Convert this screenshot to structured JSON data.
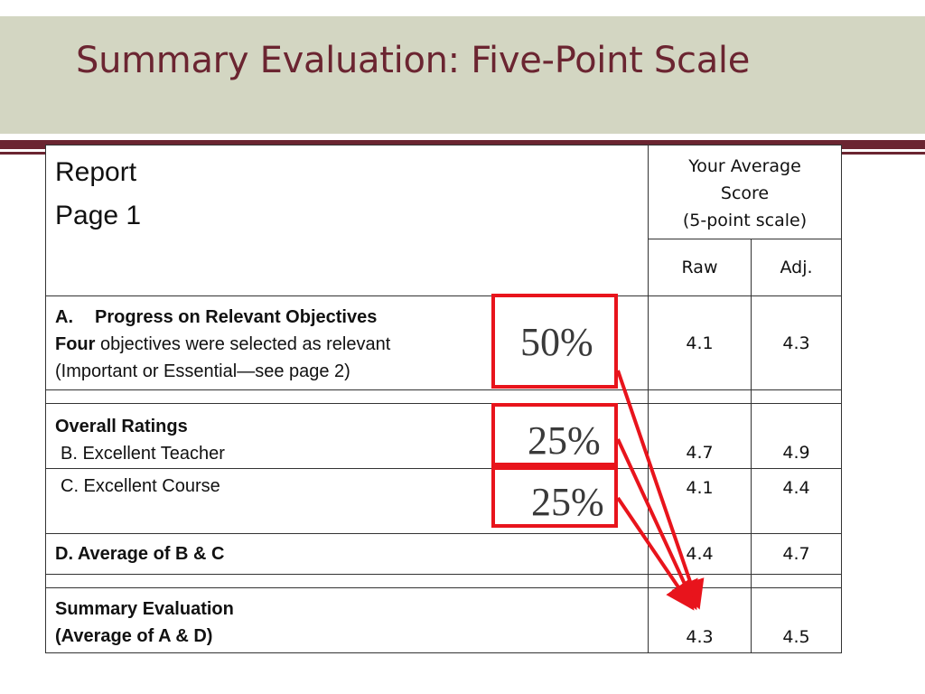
{
  "slide": {
    "title": "Summary Evaluation: Five-Point Scale"
  },
  "table": {
    "header": {
      "report_line1": "Report",
      "report_line2": "Page 1",
      "score_line1": "Your Average",
      "score_line2": "Score",
      "score_line3": "(5-point scale)",
      "raw_label": "Raw",
      "adj_label": "Adj."
    },
    "row_a": {
      "letter": "A.",
      "heading": "Progress on Relevant Objectives",
      "emph": "Four",
      "line2_rest": " objectives were selected as relevant",
      "line3": "(Important or Essential—see page 2)",
      "raw": "4.1",
      "adj": "4.3"
    },
    "overall": {
      "heading": "Overall Ratings",
      "b_label": "B. Excellent Teacher",
      "b_raw": "4.7",
      "b_adj": "4.9",
      "c_label": "C. Excellent Course",
      "c_raw": "4.1",
      "c_adj": "4.4"
    },
    "row_d": {
      "label": "D. Average of B & C",
      "raw": "4.4",
      "adj": "4.7"
    },
    "summary": {
      "line1": "Summary Evaluation",
      "line2": "(Average of A & D)",
      "raw": "4.3",
      "adj": "4.5"
    }
  },
  "weights": {
    "a": "50%",
    "b": "25%",
    "c": "25%"
  },
  "colors": {
    "title": "#6b2531",
    "band": "#d3d6c2",
    "annotation": "#e8141c"
  }
}
